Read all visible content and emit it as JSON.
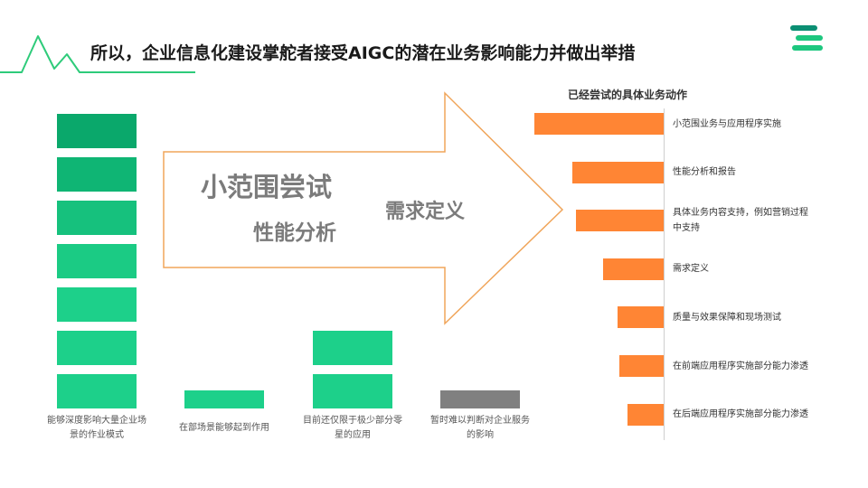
{
  "title": "所以，企业信息化建设掌舵者接受AIGC的潜在业务影响能力并做出举措",
  "colors": {
    "green_dark": "#0aa86b",
    "green": "#1dd08a",
    "gray": "#808080",
    "orange": "#ff8534",
    "arrow_outline": "#f0a55a",
    "logo_green": "#1dc77f",
    "logo_teal": "#0b8f73"
  },
  "arrow": {
    "text_small_trial": "小范围尝试",
    "text_performance": "性能分析",
    "text_requirements": "需求定义"
  },
  "chart_data": [
    {
      "type": "bar",
      "categories": [
        "能够深度影响大量企业场景的作业模式",
        "在部场景能够起到作用",
        "目前还仅限于极少部分零星的应用",
        "暂时难以判断对企业服务的影响"
      ],
      "label_lines": [
        [
          "能够深度影响大量企业场",
          "景的作业模式"
        ],
        [
          "在部场景能够起到作用"
        ],
        [
          "目前还仅限于极少部分零",
          "星的应用"
        ],
        [
          "暂时难以判断对企业服务",
          "的影响"
        ]
      ],
      "values": [
        7,
        0.4,
        2,
        0.4
      ],
      "ylim": [
        0,
        7
      ]
    },
    {
      "type": "bar",
      "orientation": "horizontal",
      "title": "已经尝试的具体业务动作",
      "categories": [
        "小范围业务与应用程序实施",
        "性能分析和报告",
        "具体业务内容支持，例如营销过程中支持",
        "需求定义",
        "质量与效果保障和现场测试",
        "在前端应用程序实施部分能力渗透",
        "在后端应用程序实施部分能力渗透"
      ],
      "label_lines": [
        [
          "小范围业务与应用程序实施"
        ],
        [
          "性能分析和报告"
        ],
        [
          "具体业务内容支持，例如营销过程",
          "中支持"
        ],
        [
          "需求定义"
        ],
        [
          "质量与效果保障和现场测试"
        ],
        [
          "在前端应用程序实施部分能力渗透"
        ],
        [
          "在后端应用程序实施部分能力渗透"
        ]
      ],
      "values": [
        143,
        101,
        97,
        67,
        51,
        49,
        40
      ]
    }
  ]
}
